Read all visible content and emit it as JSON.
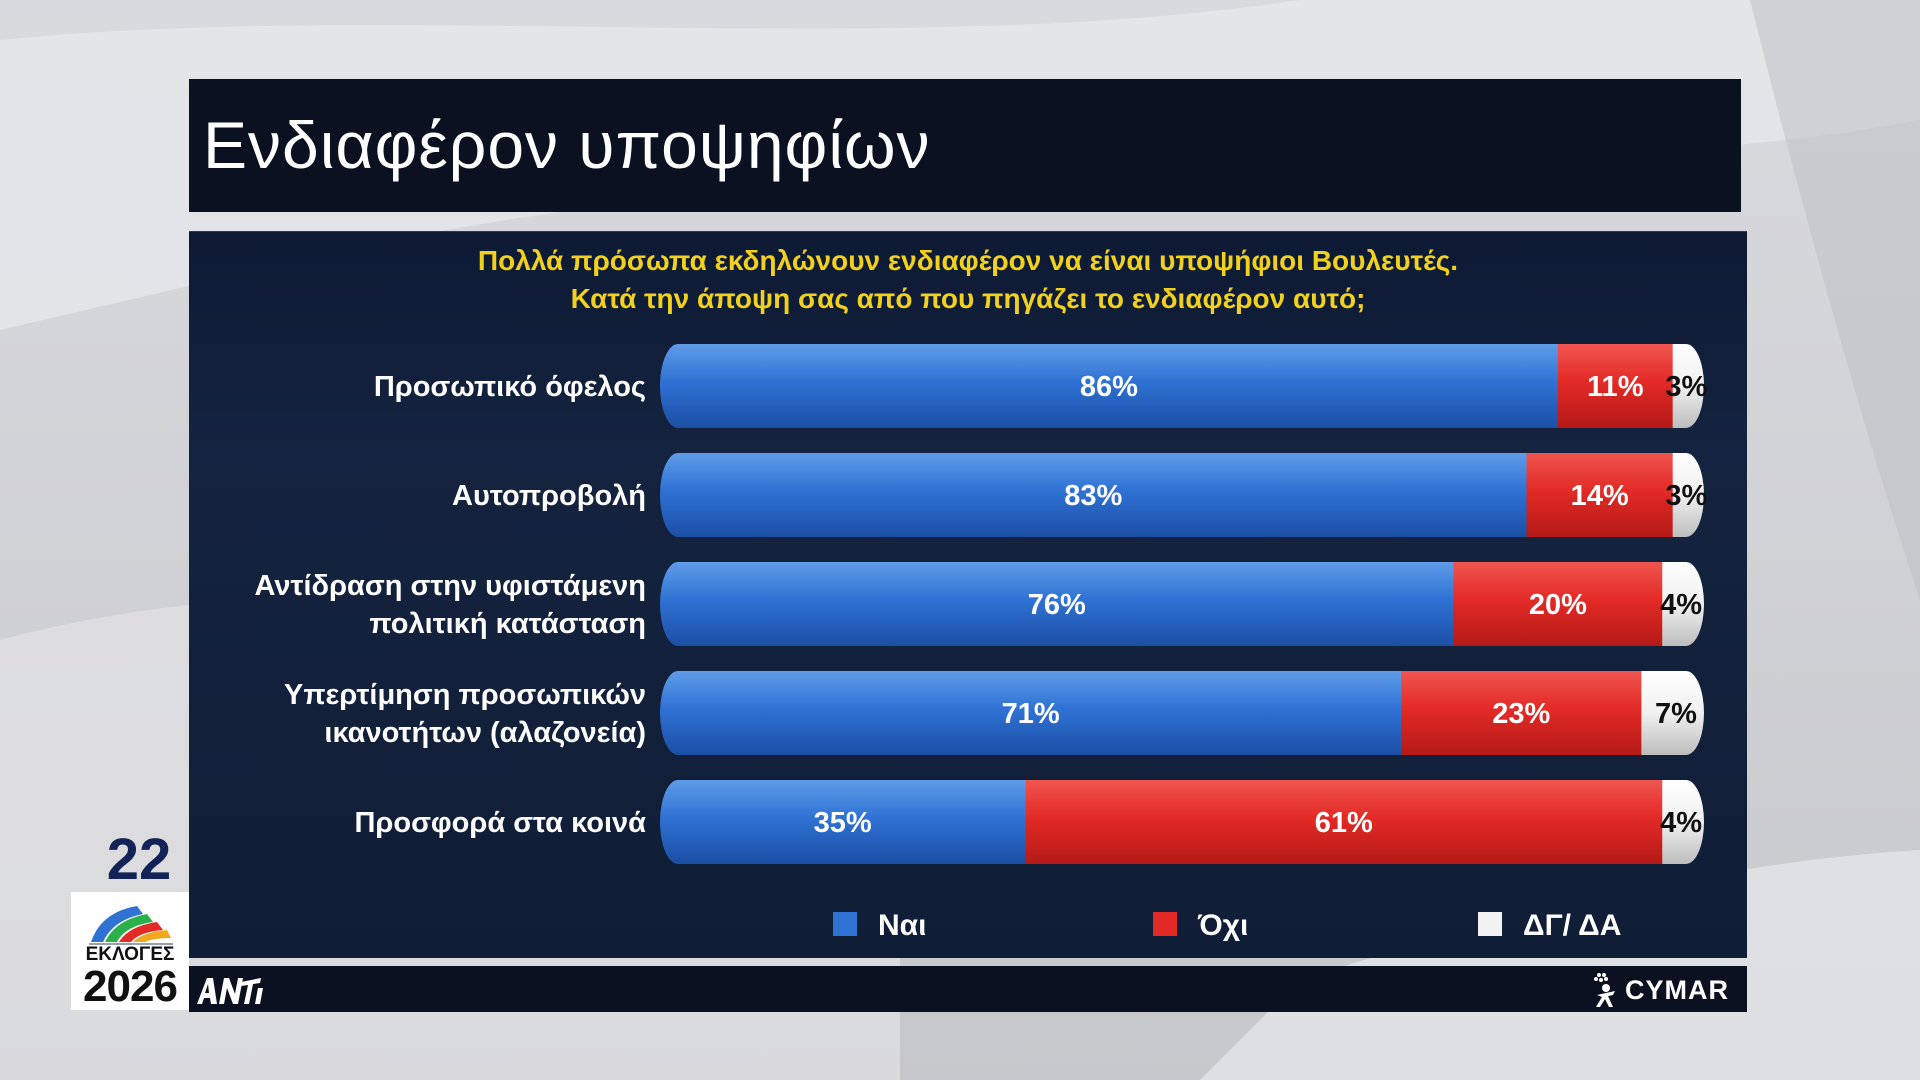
{
  "title": "Ενδιαφέρον υποψηφίων",
  "question_line1": "Πολλά πρόσωπα εκδηλώνουν ενδιαφέρον να είναι υποψήφιοι Βουλευτές.",
  "question_line2": "Κατά την άποψη σας από που πηγάζει το ενδιαφέρον αυτό;",
  "page_number": "22",
  "badge_label": "ΕΚΛΟΓΕΣ",
  "badge_year": "2026",
  "brand_right": "CYMAR",
  "colors": {
    "yes": "#2f72d4",
    "no": "#e32a26",
    "dk": "#f2f2f2",
    "question": "#f2d11c"
  },
  "chart_data": {
    "type": "bar",
    "orientation": "horizontal",
    "stacked": true,
    "percent": true,
    "categories": [
      [
        "Προσωπικό όφελος"
      ],
      [
        "Αυτοπροβολή"
      ],
      [
        "Αντίδραση στην υφιστάμενη",
        "πολιτική κατάσταση"
      ],
      [
        "Υπερτίμηση προσωπικών",
        "ικανοτήτων (αλαζονεία)"
      ],
      [
        "Προσφορά στα κοινά"
      ]
    ],
    "series": [
      {
        "name": "Ναι",
        "values": [
          86,
          83,
          76,
          71,
          35
        ],
        "labels": [
          "86%",
          "83%",
          "76%",
          "71%",
          "35%"
        ]
      },
      {
        "name": "Όχι",
        "values": [
          11,
          14,
          20,
          23,
          61
        ],
        "labels": [
          "11%",
          "14%",
          "20%",
          "23%",
          "61%"
        ]
      },
      {
        "name": "ΔΓ/ ΔΑ",
        "values": [
          3,
          3,
          4,
          7,
          4
        ],
        "labels": [
          "3%",
          "3%",
          "4%",
          "7%",
          "4%"
        ]
      }
    ],
    "xlim": [
      0,
      100
    ],
    "legend_position": "bottom"
  }
}
